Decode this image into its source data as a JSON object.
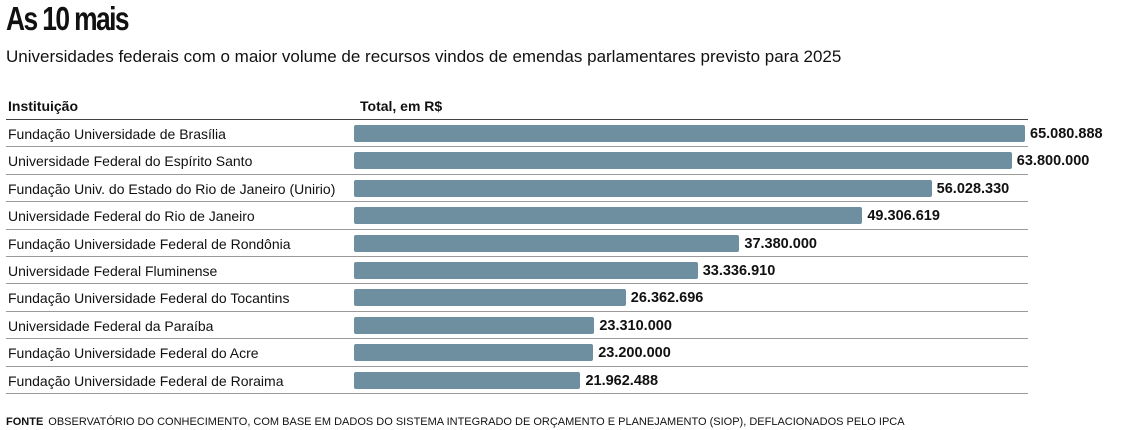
{
  "chart_data": {
    "type": "bar",
    "orientation": "horizontal",
    "title": "As 10 mais",
    "subtitle": "Universidades federais com o maior volume de recursos vindos de emendas parlamentares previsto para 2025",
    "column_headers": {
      "institution": "Instituição",
      "total": "Total, em R$"
    },
    "categories": [
      "Fundação Universidade de Brasília",
      "Universidade Federal do Espírito Santo",
      "Fundação Univ. do Estado do Rio de Janeiro (Unirio)",
      "Universidade Federal do Rio de Janeiro",
      "Fundação Universidade Federal de Rondônia",
      "Universidade Federal Fluminense",
      "Fundação Universidade Federal do Tocantins",
      "Universidade Federal da Paraíba",
      "Fundação Universidade Federal do Acre",
      "Fundação Universidade Federal de Roraima"
    ],
    "values": [
      65080888,
      63800000,
      56028330,
      49306619,
      37380000,
      33336910,
      26362696,
      23310000,
      23200000,
      21962488
    ],
    "value_labels": [
      "65.080.888",
      "63.800.000",
      "56.028.330",
      "49.306.619",
      "37.380.000",
      "33.336.910",
      "26.362.696",
      "23.310.000",
      "23.200.000",
      "21.962.488"
    ],
    "bar_color": "#6e8fa0",
    "grid": false,
    "legend": "none"
  },
  "source": {
    "label": "FONTE",
    "text": "OBSERVATÓRIO DO CONHECIMENTO, COM BASE EM DADOS DO SISTEMA INTEGRADO DE ORÇAMENTO E PLANEJAMENTO (SIOP), DEFLACIONADOS PELO IPCA"
  }
}
